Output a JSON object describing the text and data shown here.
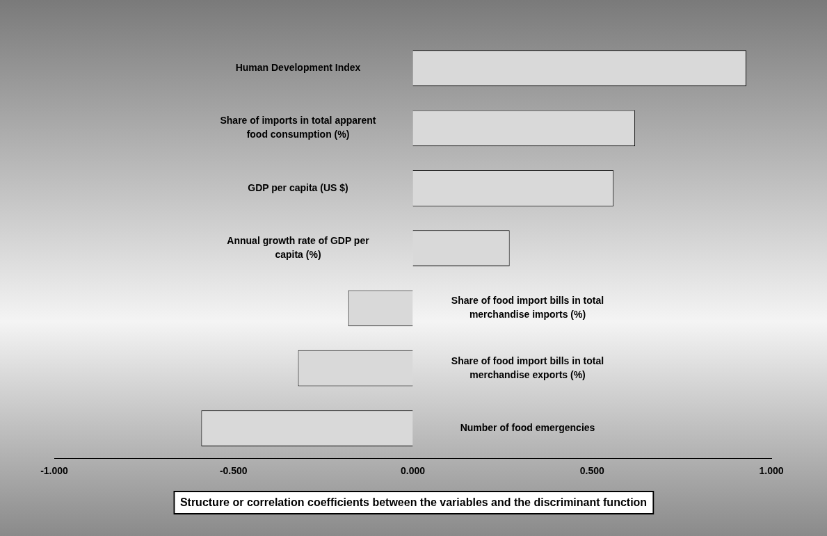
{
  "chart_data": {
    "type": "bar",
    "orientation": "horizontal",
    "title": "Structure or correlation coefficients between the variables and the discriminant function",
    "categories": [
      "Human Development Index",
      "Share of imports in total apparent food consumption (%)",
      "GDP per capita (US $)",
      "Annual growth rate of GDP per capita (%)",
      "Share of food import bills in total merchandise imports (%)",
      "Share of food import bills in total merchandise exports (%)",
      "Number of food emergencies"
    ],
    "values": [
      0.93,
      0.62,
      0.56,
      0.27,
      -0.18,
      -0.32,
      -0.59
    ],
    "color": "#d9d9d9",
    "xlim": [
      -1,
      1
    ],
    "xticks": [
      {
        "value": -1,
        "label": "-1.000"
      },
      {
        "value": -0.5,
        "label": "-0.500"
      },
      {
        "value": 0,
        "label": "0.000"
      },
      {
        "value": 0.5,
        "label": "0.500"
      },
      {
        "value": 1,
        "label": "1.000"
      }
    ],
    "tick_labels": "x",
    "grid": false,
    "legend": false
  }
}
